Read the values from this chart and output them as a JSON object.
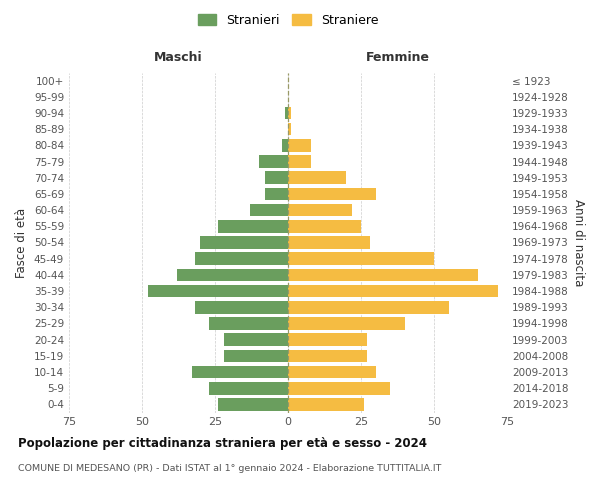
{
  "age_groups": [
    "0-4",
    "5-9",
    "10-14",
    "15-19",
    "20-24",
    "25-29",
    "30-34",
    "35-39",
    "40-44",
    "45-49",
    "50-54",
    "55-59",
    "60-64",
    "65-69",
    "70-74",
    "75-79",
    "80-84",
    "85-89",
    "90-94",
    "95-99",
    "100+"
  ],
  "birth_years": [
    "2019-2023",
    "2014-2018",
    "2009-2013",
    "2004-2008",
    "1999-2003",
    "1994-1998",
    "1989-1993",
    "1984-1988",
    "1979-1983",
    "1974-1978",
    "1969-1973",
    "1964-1968",
    "1959-1963",
    "1954-1958",
    "1949-1953",
    "1944-1948",
    "1939-1943",
    "1934-1938",
    "1929-1933",
    "1924-1928",
    "≤ 1923"
  ],
  "males": [
    24,
    27,
    33,
    22,
    22,
    27,
    32,
    48,
    38,
    32,
    30,
    24,
    13,
    8,
    8,
    10,
    2,
    0,
    1,
    0,
    0
  ],
  "females": [
    26,
    35,
    30,
    27,
    27,
    40,
    55,
    72,
    65,
    50,
    28,
    25,
    22,
    30,
    20,
    8,
    8,
    1,
    1,
    0,
    0
  ],
  "male_color": "#6a9e5e",
  "female_color": "#f5bc42",
  "background_color": "#ffffff",
  "grid_color": "#cccccc",
  "title": "Popolazione per cittadinanza straniera per età e sesso - 2024",
  "subtitle": "COMUNE DI MEDESANO (PR) - Dati ISTAT al 1° gennaio 2024 - Elaborazione TUTTITALIA.IT",
  "xlabel_left": "Maschi",
  "xlabel_right": "Femmine",
  "ylabel_left": "Fasce di età",
  "ylabel_right": "Anni di nascita",
  "legend_male": "Stranieri",
  "legend_female": "Straniere",
  "xlim": 75
}
